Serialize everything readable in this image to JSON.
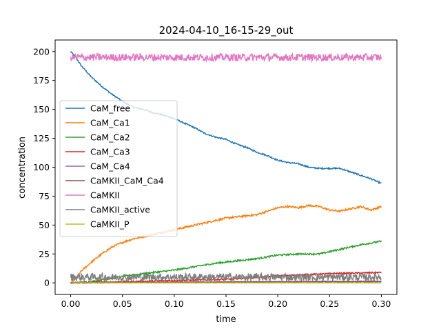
{
  "chart_data": {
    "type": "line",
    "title": "2024-04-10_16-15-29_out",
    "xlabel": "time",
    "ylabel": "concentration",
    "xlim": [
      -0.015,
      0.315
    ],
    "ylim": [
      -10,
      210
    ],
    "xticks": [
      0.0,
      0.05,
      0.1,
      0.15,
      0.2,
      0.25,
      0.3
    ],
    "xtick_labels": [
      "0.00",
      "0.05",
      "0.10",
      "0.15",
      "0.20",
      "0.25",
      "0.30"
    ],
    "yticks": [
      0,
      25,
      50,
      75,
      100,
      125,
      150,
      175,
      200
    ],
    "ytick_labels": [
      "0",
      "25",
      "50",
      "75",
      "100",
      "125",
      "150",
      "175",
      "200"
    ],
    "grid": false,
    "legend_position": "center-left",
    "series": [
      {
        "name": "CaM_free",
        "color": "#1f77b4",
        "noise": 0.6,
        "x": [
          0,
          0.005,
          0.01,
          0.02,
          0.03,
          0.04,
          0.05,
          0.06,
          0.07,
          0.08,
          0.09,
          0.1,
          0.11,
          0.12,
          0.13,
          0.14,
          0.15,
          0.16,
          0.17,
          0.18,
          0.19,
          0.2,
          0.21,
          0.22,
          0.23,
          0.24,
          0.25,
          0.26,
          0.27,
          0.28,
          0.29,
          0.3
        ],
        "y": [
          200,
          195,
          188,
          178,
          170,
          163,
          157,
          152,
          150,
          147,
          145,
          142,
          138,
          134,
          129,
          126,
          124,
          120,
          117,
          113,
          110,
          106,
          104,
          103,
          100,
          99,
          99,
          99,
          96,
          93,
          90,
          86
        ]
      },
      {
        "name": "CaM_Ca1",
        "color": "#ff7f0e",
        "noise": 0.8,
        "x": [
          0,
          0.005,
          0.01,
          0.02,
          0.03,
          0.04,
          0.05,
          0.06,
          0.07,
          0.08,
          0.09,
          0.1,
          0.11,
          0.12,
          0.13,
          0.14,
          0.15,
          0.16,
          0.17,
          0.18,
          0.19,
          0.2,
          0.21,
          0.22,
          0.23,
          0.24,
          0.25,
          0.26,
          0.27,
          0.28,
          0.29,
          0.3
        ],
        "y": [
          0,
          4,
          10,
          18,
          25,
          31,
          35,
          38,
          40,
          42,
          44,
          46,
          48,
          50,
          52,
          54,
          56,
          57,
          58,
          59,
          62,
          65,
          66,
          65,
          67,
          66,
          63,
          62,
          64,
          66,
          63,
          66
        ]
      },
      {
        "name": "CaM_Ca2",
        "color": "#2ca02c",
        "noise": 0.7,
        "x": [
          0,
          0.02,
          0.04,
          0.06,
          0.08,
          0.1,
          0.12,
          0.14,
          0.16,
          0.18,
          0.2,
          0.22,
          0.24,
          0.26,
          0.28,
          0.3
        ],
        "y": [
          0,
          1,
          4,
          7,
          9,
          11,
          14,
          17,
          19,
          21,
          24,
          25,
          25,
          29,
          33,
          36
        ]
      },
      {
        "name": "CaM_Ca3",
        "color": "#d62728",
        "noise": 0.6,
        "x": [
          0,
          0.05,
          0.1,
          0.15,
          0.2,
          0.25,
          0.3
        ],
        "y": [
          0,
          1,
          2,
          3,
          6,
          8,
          9
        ]
      },
      {
        "name": "CaM_Ca4",
        "color": "#9467bd",
        "noise": 0.4,
        "x": [
          0,
          0.1,
          0.2,
          0.3
        ],
        "y": [
          0,
          0.5,
          1,
          1.5
        ]
      },
      {
        "name": "CaMKII_CaM_Ca4",
        "color": "#8c564b",
        "noise": 0.3,
        "x": [
          0,
          0.1,
          0.2,
          0.3
        ],
        "y": [
          0,
          0.5,
          1,
          1
        ]
      },
      {
        "name": "CaMKII",
        "color": "#e377c2",
        "noise": 3.2,
        "x": [
          0,
          0.05,
          0.1,
          0.15,
          0.2,
          0.25,
          0.3
        ],
        "y": [
          195,
          195,
          195,
          195,
          195,
          195,
          195
        ]
      },
      {
        "name": "CaMKII_active",
        "color": "#7f7f7f",
        "noise": 3.2,
        "x": [
          0,
          0.05,
          0.1,
          0.15,
          0.2,
          0.25,
          0.3
        ],
        "y": [
          5,
          5,
          5,
          5,
          5,
          5,
          5
        ]
      },
      {
        "name": "CaMKII_P",
        "color": "#bcbd22",
        "noise": 0.1,
        "x": [
          0,
          0.3
        ],
        "y": [
          0,
          0
        ]
      }
    ]
  }
}
